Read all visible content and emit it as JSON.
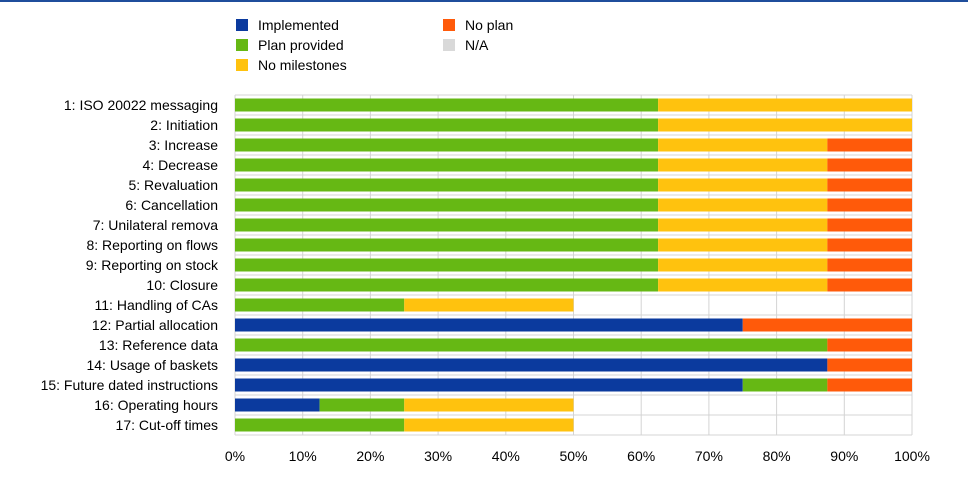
{
  "chart_data": {
    "type": "bar",
    "orientation": "horizontal",
    "stacked": true,
    "title": "",
    "xlabel": "",
    "ylabel": "",
    "xlim": [
      0,
      100
    ],
    "grid": true,
    "legend_placement": "top",
    "x_ticks": [
      "0%",
      "10%",
      "20%",
      "30%",
      "40%",
      "50%",
      "60%",
      "70%",
      "80%",
      "90%",
      "100%"
    ],
    "categories": [
      "1: ISO 20022 messaging",
      "2: Initiation",
      "3: Increase",
      "4: Decrease",
      "5: Revaluation",
      "6: Cancellation",
      "7: Unilateral remova",
      "8: Reporting on flows",
      "9: Reporting on stock",
      "10: Closure",
      "11: Handling of CAs",
      "12: Partial allocation",
      "13: Reference data",
      "14: Usage of baskets",
      "15: Future dated instructions",
      "16: Operating hours",
      "17: Cut-off times"
    ],
    "series": [
      {
        "name": "Implemented",
        "color": "#0b3a9e",
        "values": [
          0,
          0,
          0,
          0,
          0,
          0,
          0,
          0,
          0,
          0,
          0,
          75,
          0,
          87.5,
          75,
          12.5,
          0
        ]
      },
      {
        "name": "Plan provided",
        "color": "#66b814",
        "values": [
          62.5,
          62.5,
          62.5,
          62.5,
          62.5,
          62.5,
          62.5,
          62.5,
          62.5,
          62.5,
          25,
          0,
          87.5,
          0,
          12.5,
          12.5,
          25
        ]
      },
      {
        "name": "No milestones",
        "color": "#ffc20e",
        "values": [
          37.5,
          37.5,
          25,
          25,
          25,
          25,
          25,
          25,
          25,
          25,
          25,
          0,
          0,
          0,
          0,
          25,
          25
        ]
      },
      {
        "name": "No plan",
        "color": "#ff5a0a",
        "values": [
          0,
          0,
          12.5,
          12.5,
          12.5,
          12.5,
          12.5,
          12.5,
          12.5,
          12.5,
          0,
          25,
          12.5,
          12.5,
          12.5,
          0,
          0
        ]
      },
      {
        "name": "N/A",
        "color": "#d9d9d9",
        "values": [
          0,
          0,
          0,
          0,
          0,
          0,
          0,
          0,
          0,
          0,
          0,
          0,
          0,
          0,
          0,
          0,
          0
        ]
      }
    ]
  }
}
